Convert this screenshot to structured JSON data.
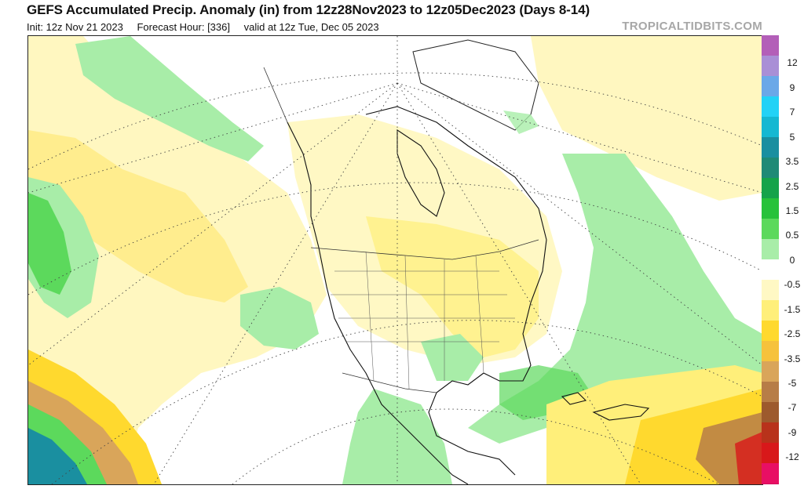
{
  "header": {
    "title": "GEFS Accumulated Precip. Anomaly (in) from 12z28Nov2023 to 12z05Dec2023 (Days 8-14)",
    "init": "Init: 12z Nov 21 2023",
    "forecast_hour": "Forecast Hour: [336]",
    "valid": "valid at 12z Tue, Dec 05 2023",
    "brand": "TROPICALTIDBITS.COM"
  },
  "colorbar": {
    "colors": [
      "#b35fb8",
      "#a98fd6",
      "#6aa8e8",
      "#22d2f6",
      "#15b8d2",
      "#1a8fa0",
      "#1f8a76",
      "#15a34a",
      "#27c23a",
      "#5cd95c",
      "#a8eda8",
      "#ffffff",
      "#fff8c4",
      "#ffef7a",
      "#ffd92e",
      "#f6c23c",
      "#d9a55a",
      "#b77d47",
      "#9d5a2d",
      "#b8321b",
      "#d8181a",
      "#e80f64"
    ],
    "labels": [
      "12",
      "9",
      "7",
      "5",
      "3.5",
      "2.5",
      "1.5",
      "0.5",
      "0",
      "-0.5",
      "-1.5",
      "-2.5",
      "-3.5",
      "-5",
      "-7",
      "-9",
      "-12"
    ]
  }
}
